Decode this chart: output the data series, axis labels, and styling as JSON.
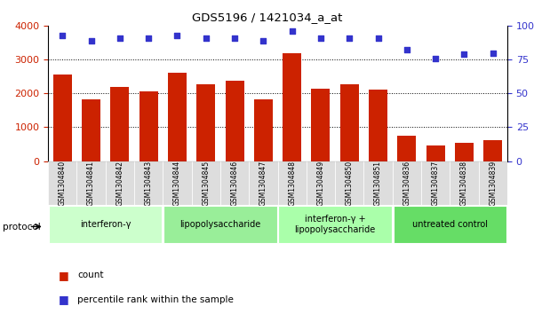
{
  "title": "GDS5196 / 1421034_a_at",
  "samples": [
    "GSM1304840",
    "GSM1304841",
    "GSM1304842",
    "GSM1304843",
    "GSM1304844",
    "GSM1304845",
    "GSM1304846",
    "GSM1304847",
    "GSM1304848",
    "GSM1304849",
    "GSM1304850",
    "GSM1304851",
    "GSM1304836",
    "GSM1304837",
    "GSM1304838",
    "GSM1304839"
  ],
  "counts": [
    2560,
    1820,
    2180,
    2050,
    2620,
    2270,
    2380,
    1830,
    3190,
    2130,
    2280,
    2120,
    750,
    470,
    540,
    620
  ],
  "percentile_ranks": [
    93,
    89,
    91,
    91,
    93,
    91,
    91,
    89,
    96,
    91,
    91,
    91,
    82,
    76,
    79,
    80
  ],
  "bar_color": "#cc2200",
  "dot_color": "#3333cc",
  "groups": [
    {
      "label": "interferon-γ",
      "start": 0,
      "end": 4,
      "color": "#ccffcc"
    },
    {
      "label": "lipopolysaccharide",
      "start": 4,
      "end": 8,
      "color": "#99ee99"
    },
    {
      "label": "interferon-γ +\nlipopolysaccharide",
      "start": 8,
      "end": 12,
      "color": "#aaffaa"
    },
    {
      "label": "untreated control",
      "start": 12,
      "end": 16,
      "color": "#66dd66"
    }
  ],
  "ylim_left": [
    0,
    4000
  ],
  "ylim_right": [
    0,
    100
  ],
  "yticks_left": [
    0,
    1000,
    2000,
    3000,
    4000
  ],
  "yticks_right": [
    0,
    25,
    50,
    75,
    100
  ],
  "ytick_labels_right": [
    "0",
    "25",
    "50",
    "75",
    "100%"
  ],
  "bg_color": "#ffffff",
  "plot_bg_color": "#ffffff",
  "tick_label_color_left": "#cc2200",
  "tick_label_color_right": "#3333cc",
  "legend_count_label": "count",
  "legend_percentile_label": "percentile rank within the sample",
  "protocol_label": "protocol"
}
